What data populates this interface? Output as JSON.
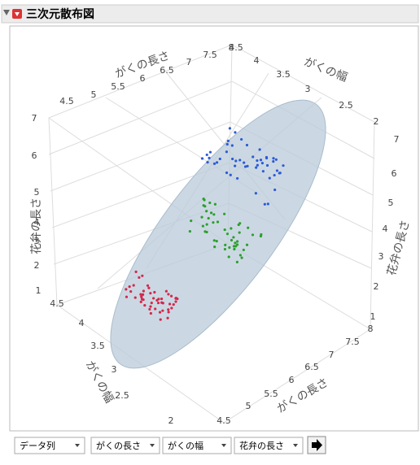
{
  "header": {
    "title": "三次元散布図"
  },
  "axes": [
    {
      "label": "がくの長さ",
      "ticks": [
        "4.5",
        "5",
        "5.5",
        "6",
        "6.5",
        "7",
        "7.5",
        "8"
      ]
    },
    {
      "label": "がくの幅",
      "ticks": [
        "4.5",
        "4",
        "3.5",
        "3",
        "2.5",
        "2"
      ]
    },
    {
      "label": "花弁の長さ",
      "ticks": [
        "7",
        "6",
        "5",
        "4",
        "3",
        "2",
        "1"
      ]
    },
    {
      "label": "花弁の長さ",
      "ticks": [
        "7",
        "6",
        "5",
        "4",
        "3",
        "2",
        "1"
      ]
    },
    {
      "label": "がくの幅",
      "ticks": [
        "4.5",
        "4",
        "3.5",
        "3",
        "2.5",
        "2"
      ]
    },
    {
      "label": "がくの長さ",
      "ticks": [
        "8",
        "7.5",
        "7",
        "6.5",
        "6",
        "5.5",
        "5",
        "4.5"
      ]
    }
  ],
  "controls": [
    "データ列",
    "がくの長さ",
    "がくの幅",
    "花弁の長さ"
  ]
}
